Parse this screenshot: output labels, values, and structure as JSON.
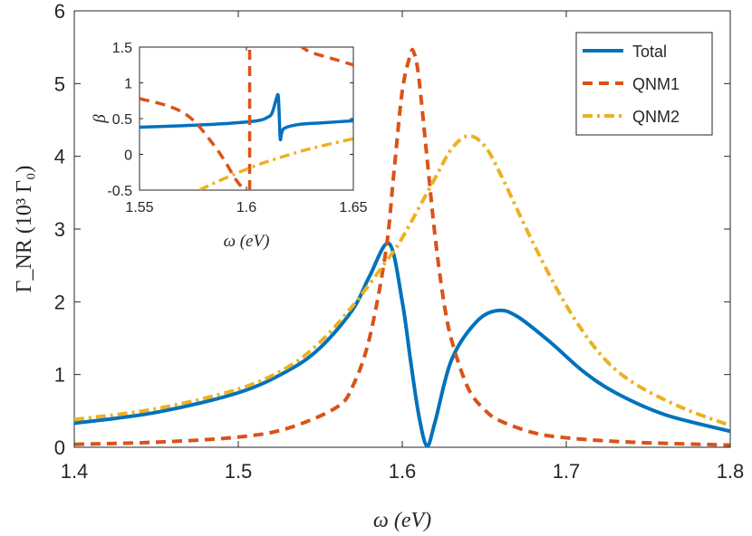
{
  "chart_data": [
    {
      "id": "main",
      "type": "line",
      "xlabel": "ω (eV)",
      "ylabel": "Γ_NR (10³ Γ₀)",
      "xlim": [
        1.4,
        1.8
      ],
      "ylim": [
        0,
        6
      ],
      "xticks": [
        "1.4",
        "1.5",
        "1.6",
        "1.7",
        "1.8"
      ],
      "yticks": [
        "0",
        "1",
        "2",
        "3",
        "4",
        "5",
        "6"
      ],
      "legend_position": "top-right",
      "series": [
        {
          "name": "Total",
          "color": "#0072BD",
          "style": "solid",
          "x": [
            1.4,
            1.45,
            1.5,
            1.53,
            1.55,
            1.57,
            1.58,
            1.592,
            1.6,
            1.605,
            1.61,
            1.615,
            1.62,
            1.63,
            1.645,
            1.658,
            1.67,
            1.69,
            1.71,
            1.73,
            1.76,
            1.8
          ],
          "y": [
            0.33,
            0.48,
            0.75,
            1.05,
            1.37,
            1.9,
            2.35,
            2.8,
            2.0,
            1.2,
            0.45,
            0.02,
            0.35,
            1.2,
            1.72,
            1.88,
            1.8,
            1.45,
            1.05,
            0.75,
            0.45,
            0.22
          ]
        },
        {
          "name": "QNM1",
          "color": "#D95319",
          "style": "dashed",
          "x": [
            1.4,
            1.45,
            1.5,
            1.53,
            1.56,
            1.57,
            1.58,
            1.59,
            1.595,
            1.6,
            1.605,
            1.607,
            1.61,
            1.615,
            1.62,
            1.625,
            1.63,
            1.64,
            1.65,
            1.66,
            1.68,
            1.7,
            1.74,
            1.8
          ],
          "y": [
            0.04,
            0.07,
            0.14,
            0.26,
            0.55,
            0.85,
            1.5,
            2.7,
            3.8,
            4.9,
            5.4,
            5.43,
            5.1,
            4.0,
            2.9,
            2.05,
            1.48,
            0.82,
            0.52,
            0.36,
            0.2,
            0.13,
            0.07,
            0.03
          ]
        },
        {
          "name": "QNM2",
          "color": "#EDB120",
          "style": "dash-dot",
          "x": [
            1.4,
            1.45,
            1.5,
            1.53,
            1.55,
            1.57,
            1.59,
            1.6,
            1.62,
            1.63,
            1.64,
            1.65,
            1.66,
            1.68,
            1.7,
            1.72,
            1.74,
            1.77,
            1.8
          ],
          "y": [
            0.38,
            0.53,
            0.8,
            1.1,
            1.45,
            1.95,
            2.55,
            2.88,
            3.7,
            4.1,
            4.28,
            4.15,
            3.75,
            2.8,
            1.95,
            1.3,
            0.9,
            0.55,
            0.3
          ]
        }
      ]
    },
    {
      "id": "inset",
      "type": "line",
      "xlabel": "ω (eV)",
      "ylabel": "β",
      "xlim": [
        1.55,
        1.65
      ],
      "ylim": [
        -0.5,
        1.5
      ],
      "xticks": [
        "1.55",
        "1.6",
        "1.65"
      ],
      "yticks": [
        "-0.5",
        "0",
        "0.5",
        "1",
        "1.5"
      ],
      "series": [
        {
          "name": "Total",
          "color": "#0072BD",
          "style": "solid",
          "x": [
            1.55,
            1.57,
            1.59,
            1.605,
            1.61,
            1.612,
            1.614,
            1.6148,
            1.6152,
            1.6158,
            1.6165,
            1.618,
            1.625,
            1.635,
            1.65
          ],
          "y": [
            0.38,
            0.4,
            0.43,
            0.47,
            0.52,
            0.58,
            0.78,
            0.83,
            0.65,
            0.22,
            0.3,
            0.37,
            0.42,
            0.44,
            0.47
          ]
        },
        {
          "name": "QNM1-left",
          "color": "#D95319",
          "style": "dashed",
          "x": [
            1.55,
            1.565,
            1.575,
            1.585,
            1.59,
            1.595,
            1.599
          ],
          "y": [
            0.78,
            0.66,
            0.48,
            0.12,
            -0.1,
            -0.35,
            -0.5
          ]
        },
        {
          "name": "QNM1-asymptote",
          "color": "#D95319",
          "style": "dashed",
          "x": [
            1.6015,
            1.6015
          ],
          "y": [
            -0.5,
            1.5
          ]
        },
        {
          "name": "QNM1-right",
          "color": "#D95319",
          "style": "dashed",
          "x": [
            1.625,
            1.63,
            1.64,
            1.65
          ],
          "y": [
            1.52,
            1.43,
            1.34,
            1.25
          ]
        },
        {
          "name": "QNM2",
          "color": "#EDB120",
          "style": "dash-dot",
          "x": [
            1.578,
            1.585,
            1.595,
            1.605,
            1.615,
            1.63,
            1.65
          ],
          "y": [
            -0.5,
            -0.4,
            -0.27,
            -0.15,
            -0.05,
            0.08,
            0.22
          ]
        }
      ]
    }
  ]
}
